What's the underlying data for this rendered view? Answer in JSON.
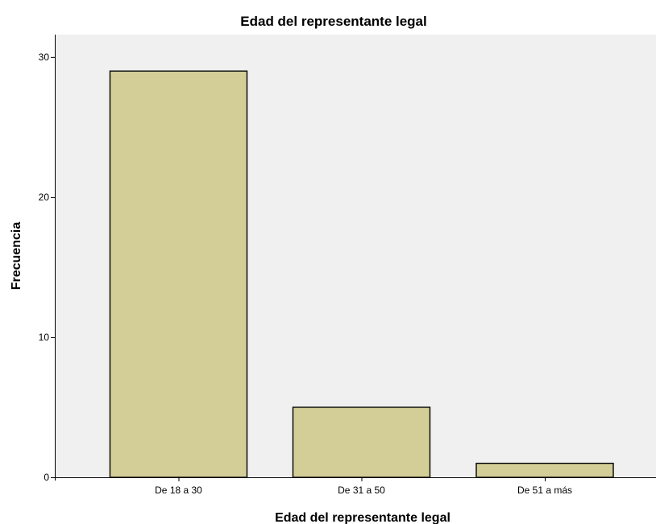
{
  "chart_data": {
    "type": "bar",
    "title": "Edad del representante legal",
    "xlabel": "Edad del representante legal",
    "ylabel": "Frecuencia",
    "categories": [
      "De 18 a 30",
      "De 31 a 50",
      "De 51 a más"
    ],
    "values": [
      29,
      5,
      1
    ],
    "ylim": [
      0,
      31.6
    ],
    "yticks": [
      0,
      10,
      20,
      30
    ],
    "grid": false,
    "legend": "none",
    "colors": {
      "bar_fill": "#d3ce97",
      "bar_stroke": "#000000",
      "plot_background": "#f0f0f0"
    }
  }
}
